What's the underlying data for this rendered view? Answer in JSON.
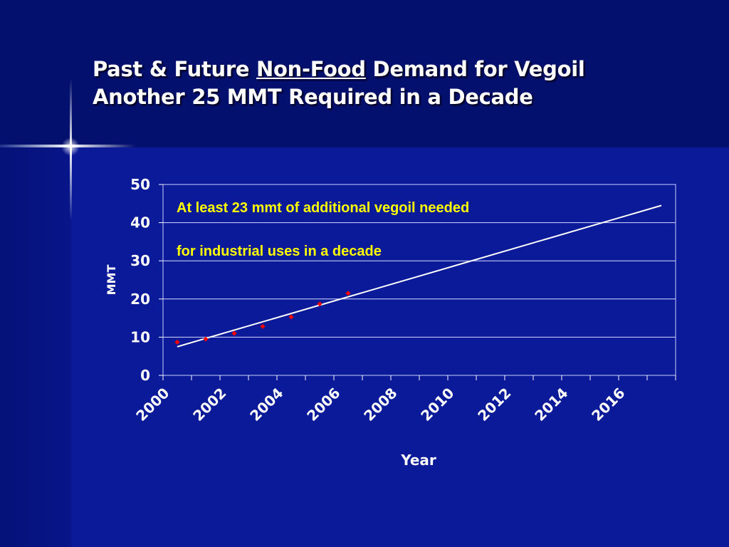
{
  "slide": {
    "title_line1_prefix": "Past & Future ",
    "title_line1_underlined": "Non-Food",
    "title_line1_suffix": " Demand for Vegoil",
    "title_line2": "Another 25 MMT Required in a Decade"
  },
  "colors": {
    "background": "#0a1a98",
    "title_band": "#04106e",
    "text": "#ffffff",
    "annotation": "#ffff00",
    "points": "#ff0000",
    "trendline": "#ffffff"
  },
  "chart_data": {
    "type": "scatter",
    "xlabel": "Year",
    "ylabel": "MMT",
    "xlim": [
      2000,
      2018
    ],
    "ylim": [
      0,
      50
    ],
    "y_ticks": [
      "0",
      "10",
      "20",
      "30",
      "40",
      "50"
    ],
    "x_tick_labels": [
      "2000",
      "2002",
      "2004",
      "2006",
      "2008",
      "2010",
      "2012",
      "2014",
      "2016"
    ],
    "grid": "horizontal",
    "series": [
      {
        "x": [
          2000.5,
          2001.5,
          2002.5,
          2003.5,
          2004.5,
          2005.5,
          2006.5
        ],
        "y": [
          8.7,
          9.5,
          11.0,
          12.8,
          15.3,
          18.7,
          21.5
        ]
      }
    ],
    "trendline": {
      "x": [
        2000.5,
        2017.5
      ],
      "y": [
        7.5,
        44.5
      ]
    },
    "annotations": [
      "At least 23 mmt of additional vegoil needed",
      "for industrial uses in a decade"
    ]
  }
}
